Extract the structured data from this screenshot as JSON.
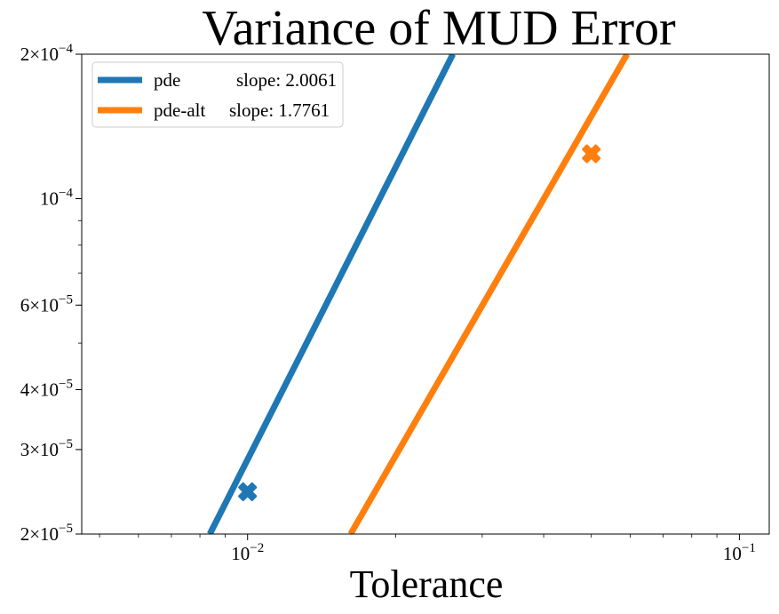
{
  "chart_data": {
    "type": "line",
    "title": "Variance of MUD Error",
    "xlabel": "Tolerance",
    "ylabel": "",
    "xscale": "log",
    "yscale": "log",
    "xlim": [
      0.0046,
      0.115
    ],
    "ylim": [
      2e-05,
      0.0002
    ],
    "grid": false,
    "legend_position": "top-left",
    "x_ticks": [
      {
        "value": 0.01,
        "base": "10",
        "exp": "−2"
      },
      {
        "value": 0.1,
        "base": "10",
        "exp": "−1"
      }
    ],
    "y_ticks": [
      {
        "value": 2e-05,
        "mant": "2×10",
        "exp": "−5"
      },
      {
        "value": 3e-05,
        "mant": "3×10",
        "exp": "−5"
      },
      {
        "value": 4e-05,
        "mant": "4×10",
        "exp": "−5"
      },
      {
        "value": 6e-05,
        "mant": "6×10",
        "exp": "−5"
      },
      {
        "value": 0.0001,
        "mant": "10",
        "exp": "−4"
      },
      {
        "value": 0.0002,
        "mant": "2×10",
        "exp": "−4"
      }
    ],
    "series": [
      {
        "name": "pde",
        "slope_label": "slope: 2.0061",
        "color": "#1f77b4",
        "line_x": [
          0.00838,
          0.02615
        ],
        "line_y": [
          2e-05,
          0.0002
        ],
        "points": [
          {
            "x": 0.01,
            "y": 2.45e-05
          }
        ]
      },
      {
        "name": "pde-alt",
        "slope_label": "slope: 1.7761",
        "color": "#ff7f0e",
        "line_x": [
          0.0162,
          0.0591
        ],
        "line_y": [
          2e-05,
          0.0002
        ],
        "points": [
          {
            "x": 0.05,
            "y": 0.000124
          }
        ]
      }
    ]
  }
}
